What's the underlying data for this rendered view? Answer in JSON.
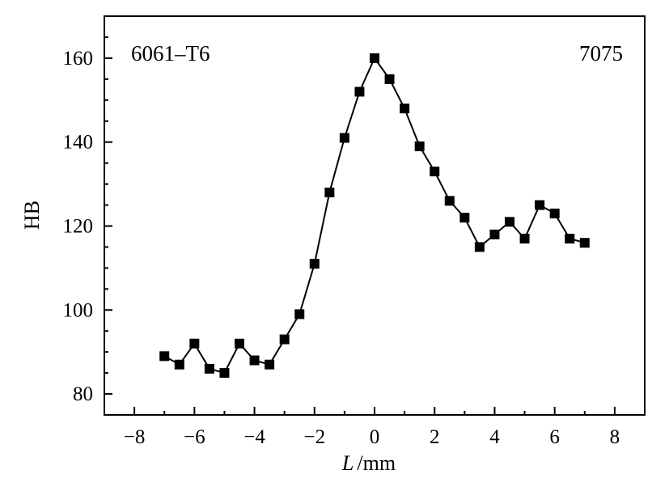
{
  "chart_data": {
    "type": "line",
    "ylabel": "HB",
    "xlabel_var": "L",
    "xlabel_unit": "/mm",
    "xlim": [
      -9,
      9
    ],
    "ylim": [
      75,
      170
    ],
    "xticks": [
      -8,
      -6,
      -4,
      -2,
      0,
      2,
      4,
      6,
      8
    ],
    "xtick_labels": [
      "−8",
      "−6",
      "−4",
      "−2",
      "0",
      "2",
      "4",
      "6",
      "8"
    ],
    "yticks": [
      80,
      100,
      120,
      140,
      160
    ],
    "ytick_labels": [
      "80",
      "100",
      "120",
      "140",
      "160"
    ],
    "annotations": {
      "left": "6061–T6",
      "right": "7075"
    },
    "marker": "square",
    "color": "#000000",
    "grid": false,
    "x": [
      -7,
      -6.5,
      -6,
      -5.5,
      -5,
      -4.5,
      -4,
      -3.5,
      -3,
      -2.5,
      -2,
      -1.5,
      -1,
      -0.5,
      0,
      0.5,
      1,
      1.5,
      2,
      2.5,
      3,
      3.5,
      4,
      4.5,
      5,
      5.5,
      6,
      6.5,
      7
    ],
    "y": [
      89,
      87,
      92,
      86,
      85,
      92,
      88,
      87,
      93,
      99,
      111,
      128,
      141,
      152,
      160,
      155,
      148,
      139,
      133,
      126,
      122,
      115,
      118,
      121,
      117,
      125,
      123,
      117,
      116
    ]
  }
}
